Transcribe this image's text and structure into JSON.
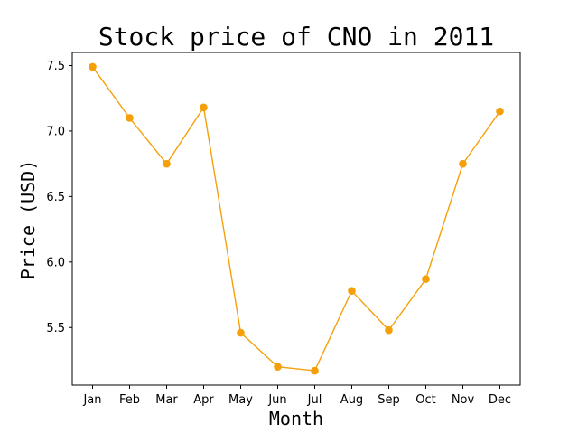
{
  "chart_data": {
    "type": "line",
    "title": "Stock price of CNO in 2011",
    "xlabel": "Month",
    "ylabel": "Price (USD)",
    "categories": [
      "Jan",
      "Feb",
      "Mar",
      "Apr",
      "May",
      "Jun",
      "Jul",
      "Aug",
      "Sep",
      "Oct",
      "Nov",
      "Dec"
    ],
    "series": [
      {
        "values": [
          7.49,
          7.1,
          6.75,
          7.18,
          5.46,
          5.2,
          5.17,
          5.78,
          5.48,
          5.87,
          6.75,
          7.15
        ],
        "color": "#f5a00a"
      }
    ],
    "ylim": [
      5.06,
      7.6
    ],
    "yticks": [
      5.5,
      6.0,
      6.5,
      7.0,
      7.5
    ],
    "ytick_labels": [
      "5.5",
      "6.0",
      "6.5",
      "7.0",
      "7.5"
    ],
    "grid": false,
    "marker": "circle"
  }
}
